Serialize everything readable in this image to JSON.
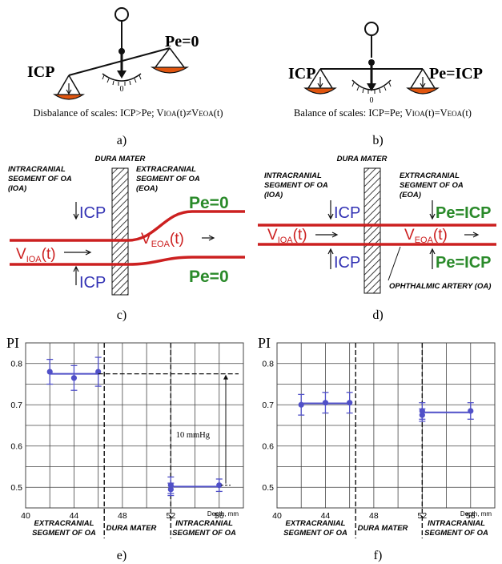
{
  "panels": {
    "a": {
      "letter": "a)",
      "left_label": "ICP",
      "right_label": "Pe=0",
      "zero": "0",
      "caption": {
        "pre": "Disbalance of scales: ICP>Pe; V",
        "s1": "IOA",
        "mid": "(t)≠V",
        "s2": "EOA",
        "post": "(t)"
      }
    },
    "b": {
      "letter": "b)",
      "left_label": "ICP",
      "right_label": "Pe=ICP",
      "zero": "0",
      "caption": {
        "pre": "Balance of scales: ICP=Pe; V",
        "s1": "IOA",
        "mid": "(t)=V",
        "s2": "EOA",
        "post": "(t)"
      }
    },
    "c": {
      "letter": "c)",
      "dura": "DURA MATER",
      "intra": [
        "INTRACRANIAL",
        "SEGMENT OF OA",
        "(IOA)"
      ],
      "extra": [
        "EXTRACRANIAL",
        "SEGMENT OF OA",
        "(EOA)"
      ],
      "icp_top": "ICP",
      "icp_bottom": "ICP",
      "pe_top": "Pe=0",
      "pe_bottom": "Pe=0",
      "v_ioa": {
        "v": "V",
        "sub": "IOA",
        "t": "(t)"
      },
      "v_eoa": {
        "v": "V",
        "sub": "EOA",
        "t": "(t)"
      }
    },
    "d": {
      "letter": "d)",
      "dura": "DURA MATER",
      "intra": [
        "INTRACRANIAL",
        "SEGMENT OF OA",
        "(IOA)"
      ],
      "extra": [
        "EXTRACRANIAL",
        "SEGMENT OF OA",
        "(EOA)"
      ],
      "icp_top": "ICP",
      "icp_bottom": "ICP",
      "pe_top": "Pe=ICP",
      "pe_bottom": "Pe=ICP",
      "v_ioa": {
        "v": "V",
        "sub": "IOA",
        "t": "(t)"
      },
      "v_eoa": {
        "v": "V",
        "sub": "EOA",
        "t": "(t)"
      },
      "artery": "OPHTHALMIC ARTERY (OA)"
    },
    "e": {
      "letter": "e)",
      "y_title": "PI",
      "y_ticks": [
        "0.8",
        "0.7",
        "0.6",
        "0.5"
      ],
      "x_ticks": [
        "40",
        "44",
        "48",
        "52",
        "56"
      ],
      "depth": "Depth, mm",
      "annotation": "10 mmHg",
      "bottom": {
        "extra": [
          "EXTRACRANIAL",
          "SEGMENT OF OA"
        ],
        "dura": "DURA MATER",
        "intra": [
          "INTRACRANIAL",
          "SEGMENT OF OA"
        ]
      }
    },
    "f": {
      "letter": "f)",
      "y_title": "PI",
      "y_ticks": [
        "0.8",
        "0.7",
        "0.6",
        "0.5"
      ],
      "x_ticks": [
        "40",
        "44",
        "48",
        "52",
        "56"
      ],
      "depth": "Depth, mm",
      "bottom": {
        "extra": [
          "EXTRACRANIAL",
          "SEGMENT OF OA"
        ],
        "dura": "DURA MATER",
        "intra": [
          "INTRACRANIAL",
          "SEGMENT OF OA"
        ]
      }
    }
  },
  "chart_data": [
    {
      "type": "scatter",
      "panel": "e",
      "ylabel": "PI",
      "xlabel": "Depth, mm",
      "xlim": [
        40,
        58
      ],
      "ylim": [
        0.45,
        0.85
      ],
      "grid": true,
      "series": [
        {
          "points": [
            {
              "x": 42,
              "y": 0.78,
              "err": 0.03
            },
            {
              "x": 44,
              "y": 0.765,
              "err": 0.03
            },
            {
              "x": 46,
              "y": 0.78,
              "err": 0.035
            }
          ]
        },
        {
          "points": [
            {
              "x": 52,
              "y": 0.505,
              "err": 0.02
            },
            {
              "x": 52,
              "y": 0.495,
              "err": 0.015
            },
            {
              "x": 56,
              "y": 0.505,
              "err": 0.015
            }
          ]
        }
      ],
      "boundaries": [
        46.5,
        52
      ],
      "bracket": {
        "y_high": 0.775,
        "y_low": 0.505,
        "label": "10 mmHg"
      }
    },
    {
      "type": "scatter",
      "panel": "f",
      "ylabel": "PI",
      "xlabel": "Depth, mm",
      "xlim": [
        40,
        58
      ],
      "ylim": [
        0.45,
        0.85
      ],
      "grid": true,
      "series": [
        {
          "points": [
            {
              "x": 42,
              "y": 0.7,
              "err": 0.025
            },
            {
              "x": 44,
              "y": 0.705,
              "err": 0.025
            },
            {
              "x": 46,
              "y": 0.705,
              "err": 0.025
            }
          ]
        },
        {
          "points": [
            {
              "x": 52,
              "y": 0.685,
              "err": 0.02
            },
            {
              "x": 52,
              "y": 0.675,
              "err": 0.015
            },
            {
              "x": 56,
              "y": 0.685,
              "err": 0.02
            }
          ]
        }
      ],
      "boundaries": [
        46.5,
        52
      ]
    }
  ],
  "colors": {
    "vessel": "#cc2020",
    "icp": "#3232b4",
    "pe": "#2a8a2a",
    "pan": "#e0550f",
    "data": "#5050c8",
    "grid": "#444444"
  }
}
